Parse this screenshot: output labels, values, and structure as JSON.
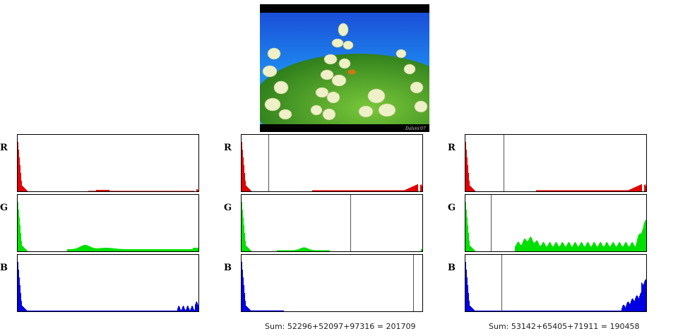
{
  "image": {
    "caption_mark": "Photo",
    "watermark": "Dalvin'07"
  },
  "labels": {
    "r": "R",
    "g": "G",
    "b": "B"
  },
  "colors": {
    "r": "#e00000",
    "g": "#00e000",
    "b": "#0000e0",
    "marker": "#555555"
  },
  "panels": [
    {
      "id": "original",
      "markers": {
        "r": null,
        "g": null,
        "b": null
      },
      "sum": ""
    },
    {
      "id": "adjusted-1",
      "markers": {
        "r": 0.15,
        "g": 0.6,
        "b": 0.95
      },
      "sum": "Sum: 52296+52097+97316 = 201709"
    },
    {
      "id": "adjusted-2",
      "markers": {
        "r": 0.21,
        "g": 0.14,
        "b": 0.2
      },
      "sum": "Sum: 53142+65405+71911 = 190458"
    }
  ]
}
